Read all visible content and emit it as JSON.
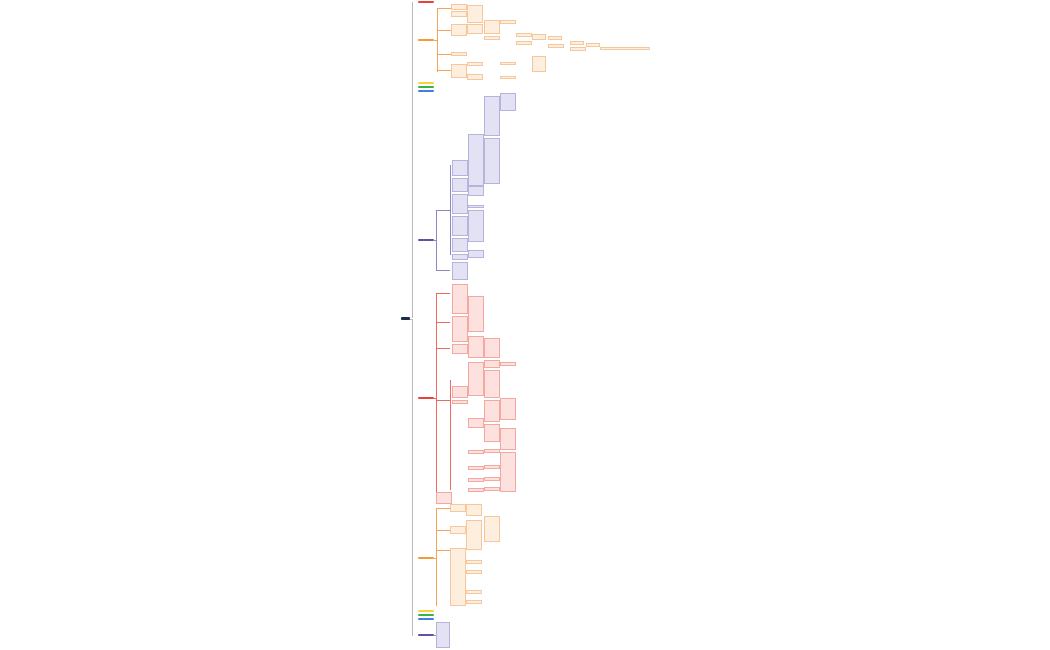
{
  "mindmap": {
    "root": {
      "label": "",
      "color": "#1f2d4d"
    },
    "branch_colors": {
      "red": "#e8403a",
      "orange": "#f39a3b",
      "yellow": "#f7d23e",
      "green": "#3fb04a",
      "blue": "#3f7fe0",
      "navy": "#5b55a8"
    },
    "leaf_colors": {
      "orange": "#fdeedd",
      "navy": "#e3e2f4",
      "red": "#fde1de"
    },
    "branches": [
      {
        "label": "",
        "color": "red"
      },
      {
        "label": "",
        "color": "orange"
      },
      {
        "label": "",
        "color": "yellow"
      },
      {
        "label": "",
        "color": "green"
      },
      {
        "label": "",
        "color": "blue"
      },
      {
        "label": "",
        "color": "navy"
      },
      {
        "label": "",
        "color": "red"
      },
      {
        "label": "",
        "color": "orange"
      },
      {
        "label": "",
        "color": "yellow"
      },
      {
        "label": "",
        "color": "green"
      },
      {
        "label": "",
        "color": "blue"
      },
      {
        "label": "",
        "color": "navy"
      }
    ]
  }
}
